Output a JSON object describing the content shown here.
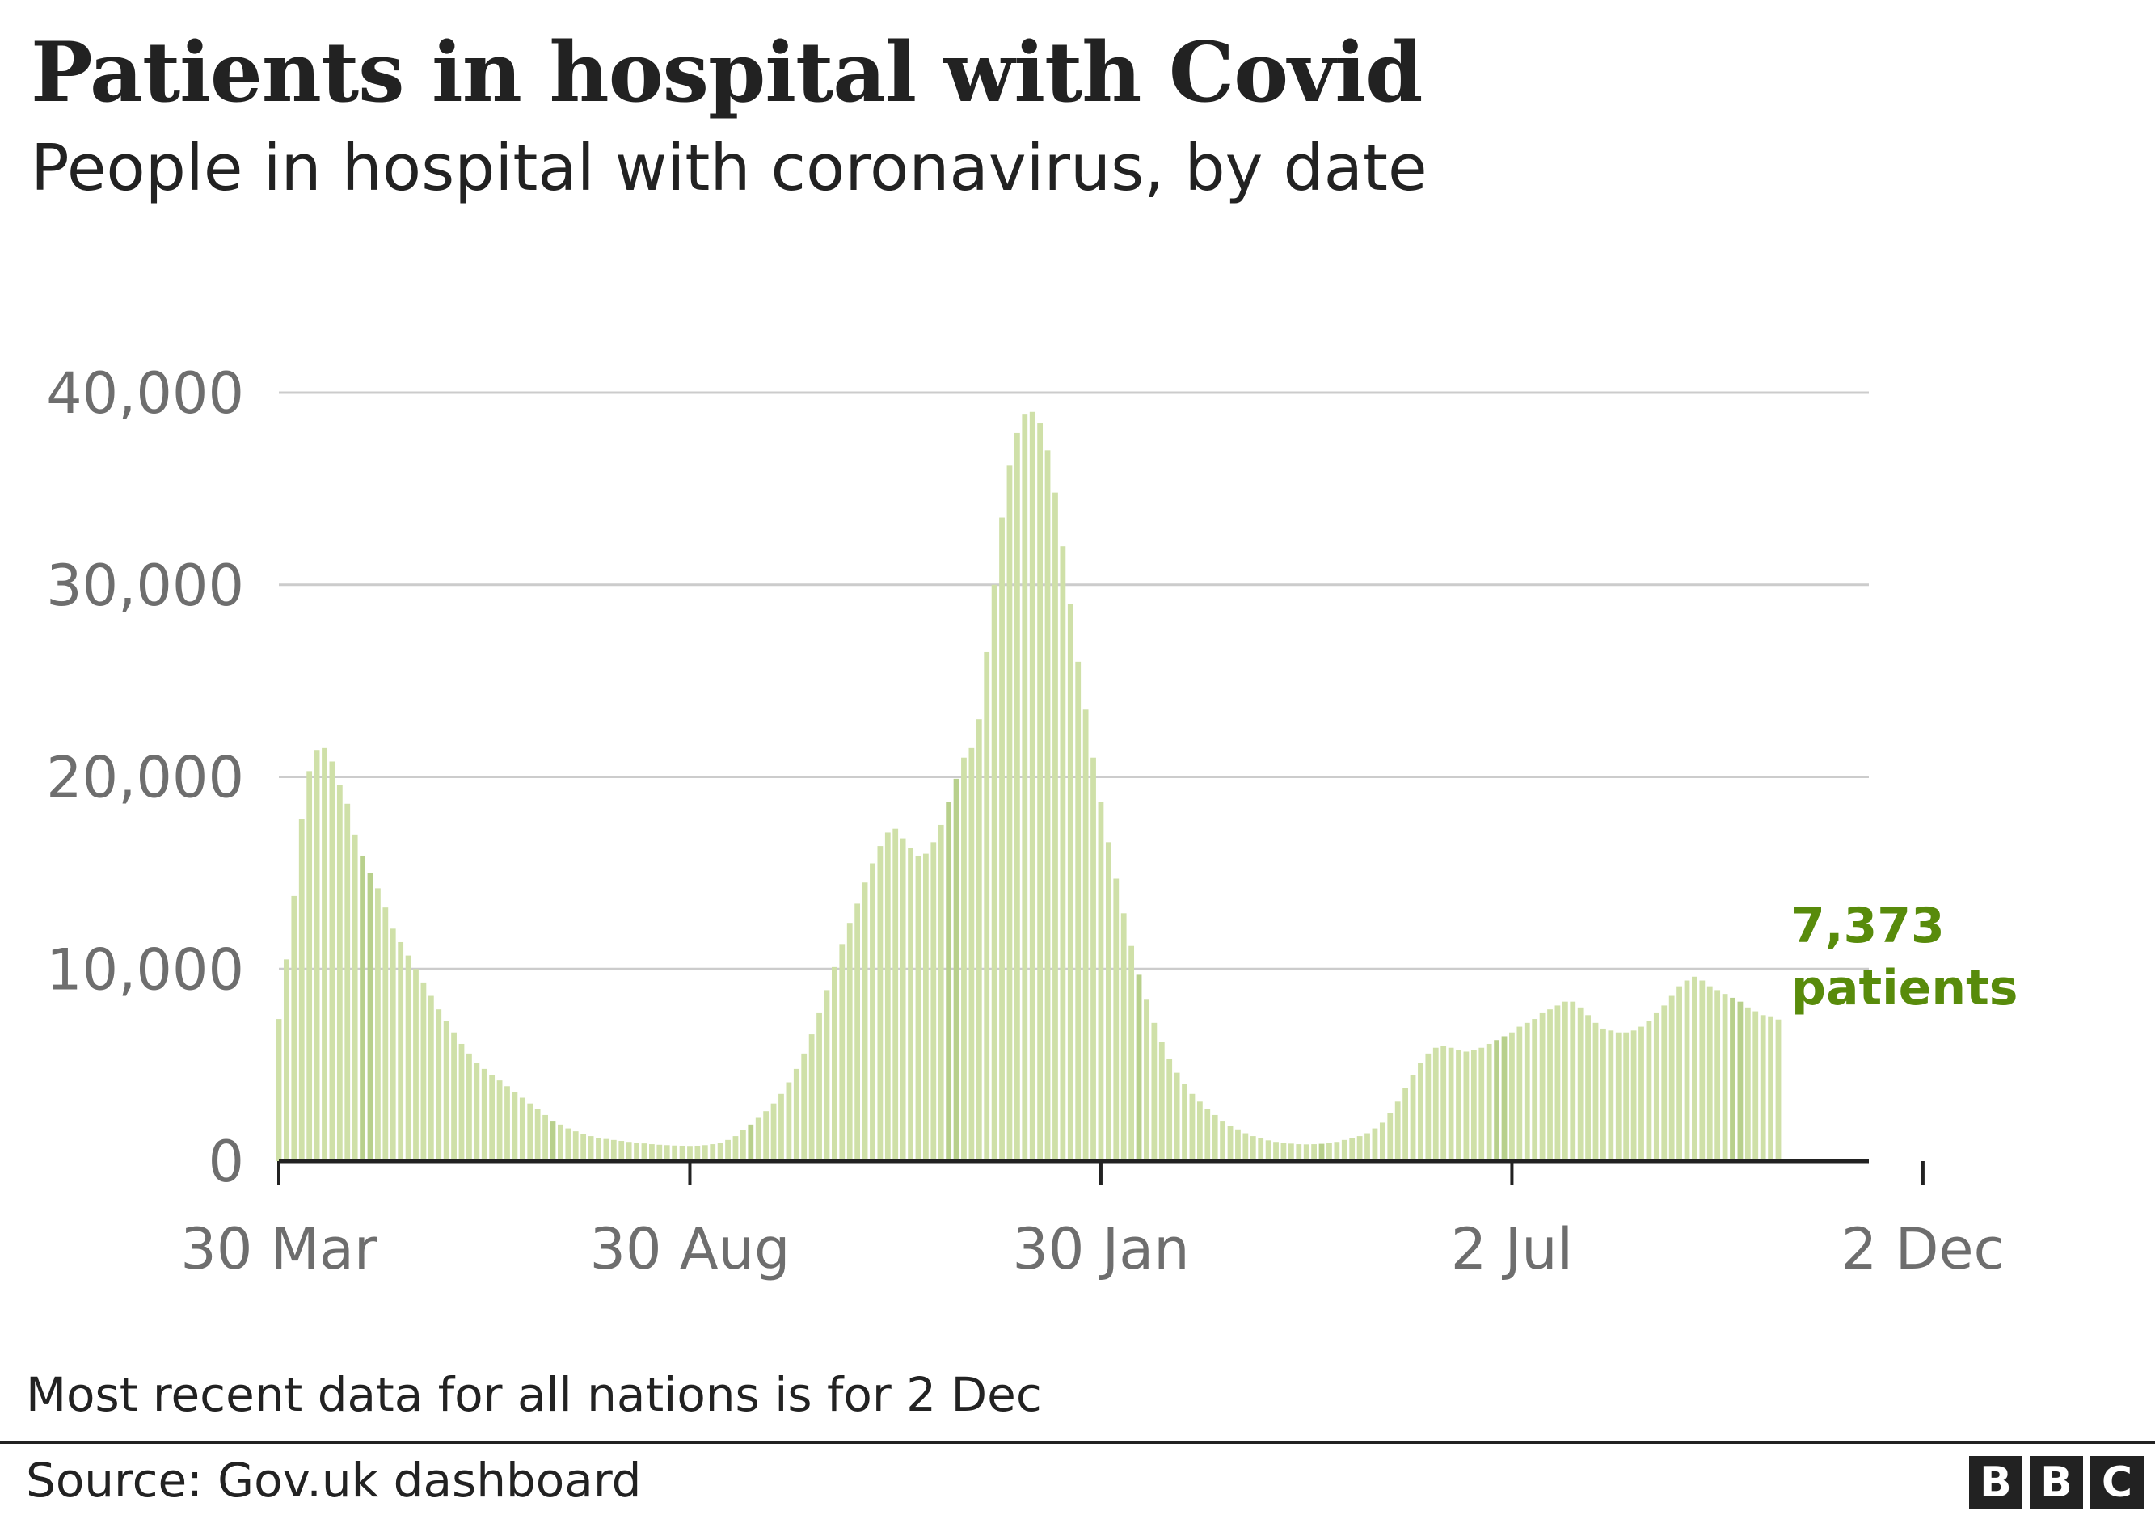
{
  "title": "Patients in hospital with Covid",
  "subtitle": "People in hospital with coronavirus, by date",
  "note": "Most recent data for all nations is for 2 Dec",
  "source": "Source: Gov.uk dashboard",
  "logo": [
    "B",
    "B",
    "C"
  ],
  "colors": {
    "bar": "#cfe0a8",
    "bar_highlight": "#b8d08c",
    "accent": "#588b0b",
    "grid": "#cccccc",
    "axis": "#222222"
  },
  "chart_data": {
    "type": "bar",
    "ylim": [
      0,
      40000
    ],
    "y_ticks": [
      {
        "value": 0,
        "label": "0"
      },
      {
        "value": 10000,
        "label": "10,000"
      },
      {
        "value": 20000,
        "label": "20,000"
      },
      {
        "value": 30000,
        "label": "30,000"
      },
      {
        "value": 40000,
        "label": "40,000"
      }
    ],
    "x_ticks": [
      "30 Mar",
      "30 Aug",
      "30 Jan",
      "2 Jul",
      "2 Dec"
    ],
    "grid": true,
    "end_label": {
      "value": "7,373",
      "unit": "patients"
    },
    "series": [
      {
        "values": [
          7400,
          10500,
          13800,
          17800,
          20300,
          21400,
          21500,
          20800,
          19600,
          18600,
          17000,
          15900,
          15000,
          14200,
          13200,
          12100,
          11400,
          10700,
          10000,
          9300,
          8600,
          7900,
          7300,
          6700,
          6100,
          5600,
          5100,
          4800,
          4500,
          4200,
          3900,
          3600,
          3300,
          3000,
          2700,
          2400,
          2100,
          1900,
          1700,
          1550,
          1400,
          1300,
          1200,
          1150,
          1100,
          1050,
          1000,
          960,
          920,
          880,
          850,
          830,
          810,
          800,
          790,
          800,
          830,
          880,
          960,
          1100,
          1300,
          1600,
          1900,
          2250,
          2600,
          3000,
          3500,
          4100,
          4800,
          5600,
          6600,
          7700,
          8900,
          10100,
          11300,
          12400,
          13400,
          14500,
          15500,
          16400,
          17100,
          17300,
          16800,
          16300,
          15900,
          16000,
          16600,
          17500,
          18700,
          19900,
          21000,
          21500,
          23000,
          26500,
          30000,
          33500,
          36200,
          37900,
          38900,
          39000,
          38400,
          37000,
          34800,
          32000,
          29000,
          26000,
          23500,
          21000,
          18700,
          16600,
          14700,
          12900,
          11200,
          9700,
          8400,
          7200,
          6200,
          5300,
          4600,
          4000,
          3500,
          3100,
          2700,
          2400,
          2100,
          1850,
          1650,
          1450,
          1300,
          1180,
          1080,
          1000,
          950,
          910,
          880,
          870,
          880,
          900,
          940,
          1000,
          1100,
          1200,
          1300,
          1450,
          1700,
          2000,
          2500,
          3100,
          3800,
          4500,
          5100,
          5600,
          5900,
          6000,
          5900,
          5800,
          5700,
          5800,
          5900,
          6100,
          6300,
          6500,
          6700,
          7000,
          7200,
          7400,
          7700,
          7900,
          8100,
          8300,
          8300,
          8000,
          7600,
          7200,
          6900,
          6800,
          6700,
          6700,
          6800,
          7000,
          7300,
          7700,
          8100,
          8600,
          9100,
          9400,
          9600,
          9400,
          9100,
          8900,
          8700,
          8500,
          8300,
          8000,
          7800,
          7600,
          7500,
          7373
        ]
      }
    ],
    "x_tick_positions": [
      0,
      54,
      108,
      162,
      216
    ]
  }
}
